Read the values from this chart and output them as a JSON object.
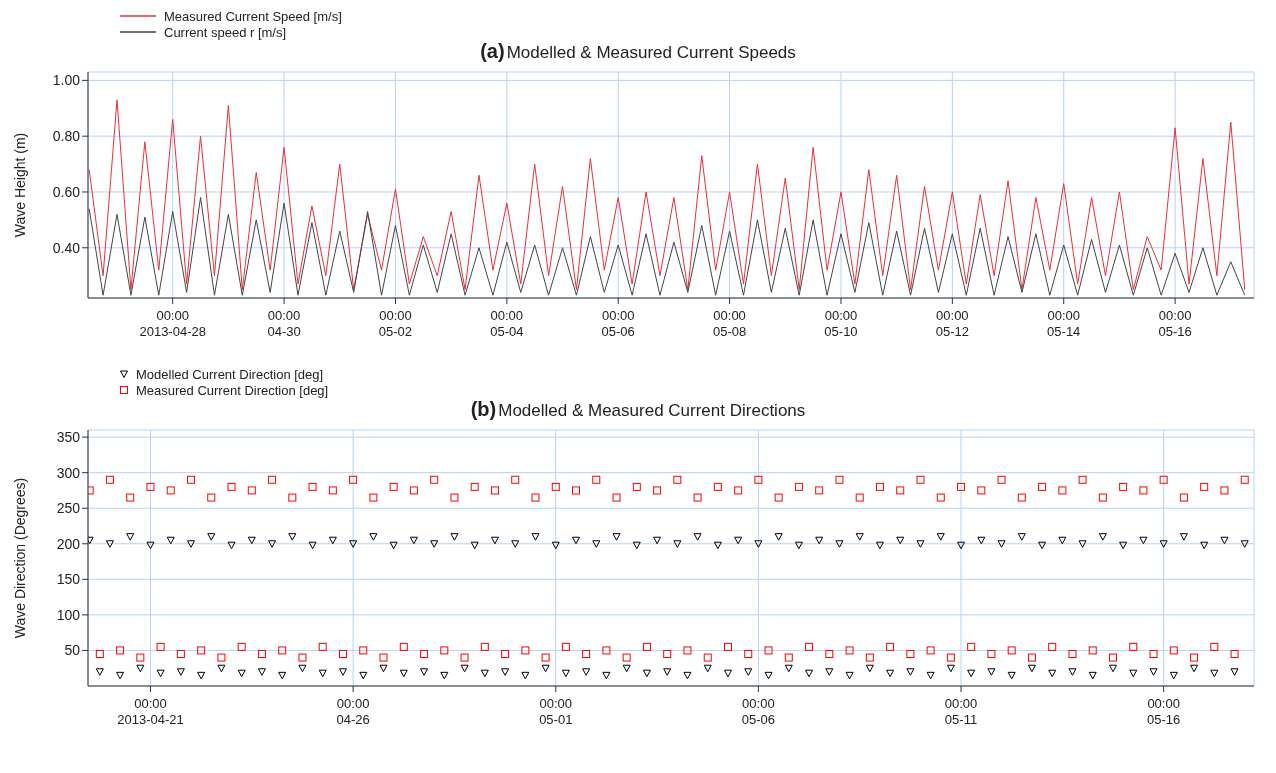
{
  "chart_data": [
    {
      "type": "line",
      "title": "Modelled & Measured Current Speeds",
      "annotations": [
        "(a)"
      ],
      "ylabel": "Wave Height (m)",
      "legend": "top left",
      "grid": true,
      "xlim": [
        "2013-04-26T11:30",
        "2013-05-17T10:00"
      ],
      "xticks": [
        {
          "value": "2013-04-28",
          "label": "00:00\n2013-04-28"
        },
        {
          "value": "2013-04-30",
          "label": "00:00\n04-30"
        },
        {
          "value": "2013-05-02",
          "label": "00:00\n05-02"
        },
        {
          "value": "2013-05-04",
          "label": "00:00\n05-04"
        },
        {
          "value": "2013-05-06",
          "label": "00:00\n05-06"
        },
        {
          "value": "2013-05-08",
          "label": "00:00\n05-08"
        },
        {
          "value": "2013-05-10",
          "label": "00:00\n05-10"
        },
        {
          "value": "2013-05-12",
          "label": "00:00\n05-12"
        },
        {
          "value": "2013-05-14",
          "label": "00:00\n05-14"
        },
        {
          "value": "2013-05-16",
          "label": "00:00\n05-16"
        }
      ],
      "ylim": [
        0.22,
        1.03
      ],
      "yticks": [
        {
          "value": 0.4,
          "label": "0.40"
        },
        {
          "value": 0.6,
          "label": "0.60"
        },
        {
          "value": 0.8,
          "label": "0.80"
        },
        {
          "value": 1.0,
          "label": "1.00"
        }
      ],
      "x": [
        "2013-04-26T12:00",
        "2013-04-26T18:00",
        "2013-04-27T00:00",
        "2013-04-27T06:00",
        "2013-04-27T12:00",
        "2013-04-27T18:00",
        "2013-04-28T00:00",
        "2013-04-28T06:00",
        "2013-04-28T12:00",
        "2013-04-28T18:00",
        "2013-04-29T00:00",
        "2013-04-29T06:00",
        "2013-04-29T12:00",
        "2013-04-29T18:00",
        "2013-04-30T00:00",
        "2013-04-30T06:00",
        "2013-04-30T12:00",
        "2013-04-30T18:00",
        "2013-05-01T00:00",
        "2013-05-01T06:00",
        "2013-05-01T12:00",
        "2013-05-01T18:00",
        "2013-05-02T00:00",
        "2013-05-02T06:00",
        "2013-05-02T12:00",
        "2013-05-02T18:00",
        "2013-05-03T00:00",
        "2013-05-03T06:00",
        "2013-05-03T12:00",
        "2013-05-03T18:00",
        "2013-05-04T00:00",
        "2013-05-04T06:00",
        "2013-05-04T12:00",
        "2013-05-04T18:00",
        "2013-05-05T00:00",
        "2013-05-05T06:00",
        "2013-05-05T12:00",
        "2013-05-05T18:00",
        "2013-05-06T00:00",
        "2013-05-06T06:00",
        "2013-05-06T12:00",
        "2013-05-06T18:00",
        "2013-05-07T00:00",
        "2013-05-07T06:00",
        "2013-05-07T12:00",
        "2013-05-07T18:00",
        "2013-05-08T00:00",
        "2013-05-08T06:00",
        "2013-05-08T12:00",
        "2013-05-08T18:00",
        "2013-05-09T00:00",
        "2013-05-09T06:00",
        "2013-05-09T12:00",
        "2013-05-09T18:00",
        "2013-05-10T00:00",
        "2013-05-10T06:00",
        "2013-05-10T12:00",
        "2013-05-10T18:00",
        "2013-05-11T00:00",
        "2013-05-11T06:00",
        "2013-05-11T12:00",
        "2013-05-11T18:00",
        "2013-05-12T00:00",
        "2013-05-12T06:00",
        "2013-05-12T12:00",
        "2013-05-12T18:00",
        "2013-05-13T00:00",
        "2013-05-13T06:00",
        "2013-05-13T12:00",
        "2013-05-13T18:00",
        "2013-05-14T00:00",
        "2013-05-14T06:00",
        "2013-05-14T12:00",
        "2013-05-14T18:00",
        "2013-05-15T00:00",
        "2013-05-15T06:00",
        "2013-05-15T12:00",
        "2013-05-15T18:00",
        "2013-05-16T00:00",
        "2013-05-16T06:00",
        "2013-05-16T12:00",
        "2013-05-16T18:00",
        "2013-05-17T00:00",
        "2013-05-17T06:00"
      ],
      "series": [
        {
          "name": "Measured Current Speed [m/s]",
          "color": "#e8303a",
          "values": [
            0.68,
            0.3,
            0.93,
            0.25,
            0.78,
            0.32,
            0.86,
            0.27,
            0.8,
            0.3,
            0.91,
            0.25,
            0.67,
            0.32,
            0.76,
            0.27,
            0.55,
            0.3,
            0.7,
            0.25,
            0.52,
            0.32,
            0.61,
            0.27,
            0.44,
            0.3,
            0.53,
            0.25,
            0.66,
            0.32,
            0.56,
            0.27,
            0.7,
            0.3,
            0.62,
            0.25,
            0.72,
            0.32,
            0.58,
            0.27,
            0.6,
            0.3,
            0.58,
            0.25,
            0.73,
            0.32,
            0.6,
            0.27,
            0.7,
            0.3,
            0.65,
            0.25,
            0.76,
            0.32,
            0.6,
            0.27,
            0.68,
            0.3,
            0.66,
            0.25,
            0.62,
            0.32,
            0.6,
            0.27,
            0.59,
            0.3,
            0.64,
            0.25,
            0.58,
            0.32,
            0.63,
            0.27,
            0.58,
            0.3,
            0.6,
            0.25,
            0.44,
            0.32,
            0.83,
            0.27,
            0.72,
            0.3,
            0.85,
            0.25
          ]
        },
        {
          "name": "Current speed r [m/s]",
          "color": "#444444",
          "values": [
            0.54,
            0.23,
            0.52,
            0.23,
            0.51,
            0.23,
            0.53,
            0.24,
            0.58,
            0.23,
            0.52,
            0.23,
            0.5,
            0.24,
            0.56,
            0.23,
            0.49,
            0.23,
            0.46,
            0.24,
            0.53,
            0.23,
            0.48,
            0.23,
            0.41,
            0.24,
            0.45,
            0.23,
            0.4,
            0.23,
            0.42,
            0.24,
            0.41,
            0.23,
            0.4,
            0.23,
            0.44,
            0.24,
            0.41,
            0.23,
            0.45,
            0.23,
            0.42,
            0.24,
            0.48,
            0.23,
            0.46,
            0.23,
            0.5,
            0.24,
            0.47,
            0.23,
            0.5,
            0.23,
            0.45,
            0.24,
            0.49,
            0.23,
            0.46,
            0.23,
            0.47,
            0.24,
            0.45,
            0.23,
            0.47,
            0.23,
            0.44,
            0.24,
            0.45,
            0.23,
            0.41,
            0.23,
            0.43,
            0.24,
            0.41,
            0.23,
            0.4,
            0.23,
            0.38,
            0.24,
            0.4,
            0.23,
            0.35,
            0.23
          ]
        }
      ]
    },
    {
      "type": "scatter",
      "title": "Modelled & Measured Current Directions",
      "annotations": [
        "(b)"
      ],
      "ylabel": "Wave Direction (Degrees)",
      "legend": "top left",
      "grid": true,
      "xlim": [
        "2013-04-19T11:00",
        "2013-05-18T05:30"
      ],
      "xticks": [
        {
          "value": "2013-04-21",
          "label": "00:00\n2013-04-21"
        },
        {
          "value": "2013-04-26",
          "label": "00:00\n04-26"
        },
        {
          "value": "2013-05-01",
          "label": "00:00\n05-01"
        },
        {
          "value": "2013-05-06",
          "label": "00:00\n05-06"
        },
        {
          "value": "2013-05-11",
          "label": "00:00\n05-11"
        },
        {
          "value": "2013-05-16",
          "label": "00:00\n05-16"
        }
      ],
      "ylim": [
        0,
        360
      ],
      "yticks": [
        50,
        100,
        150,
        200,
        250,
        300,
        350
      ],
      "x": [
        "2013-04-19T12:00",
        "2013-04-19T18:00",
        "2013-04-20T00:00",
        "2013-04-20T06:00",
        "2013-04-20T12:00",
        "2013-04-20T18:00",
        "2013-04-21T00:00",
        "2013-04-21T06:00",
        "2013-04-21T12:00",
        "2013-04-21T18:00",
        "2013-04-22T00:00",
        "2013-04-22T06:00",
        "2013-04-22T12:00",
        "2013-04-22T18:00",
        "2013-04-23T00:00",
        "2013-04-23T06:00",
        "2013-04-23T12:00",
        "2013-04-23T18:00",
        "2013-04-24T00:00",
        "2013-04-24T06:00",
        "2013-04-24T12:00",
        "2013-04-24T18:00",
        "2013-04-25T00:00",
        "2013-04-25T06:00",
        "2013-04-25T12:00",
        "2013-04-25T18:00",
        "2013-04-26T00:00",
        "2013-04-26T06:00",
        "2013-04-26T12:00",
        "2013-04-26T18:00",
        "2013-04-27T00:00",
        "2013-04-27T06:00",
        "2013-04-27T12:00",
        "2013-04-27T18:00",
        "2013-04-28T00:00",
        "2013-04-28T06:00",
        "2013-04-28T12:00",
        "2013-04-28T18:00",
        "2013-04-29T00:00",
        "2013-04-29T06:00",
        "2013-04-29T12:00",
        "2013-04-29T18:00",
        "2013-04-30T00:00",
        "2013-04-30T06:00",
        "2013-04-30T12:00",
        "2013-04-30T18:00",
        "2013-05-01T00:00",
        "2013-05-01T06:00",
        "2013-05-01T12:00",
        "2013-05-01T18:00",
        "2013-05-02T00:00",
        "2013-05-02T06:00",
        "2013-05-02T12:00",
        "2013-05-02T18:00",
        "2013-05-03T00:00",
        "2013-05-03T06:00",
        "2013-05-03T12:00",
        "2013-05-03T18:00",
        "2013-05-04T00:00",
        "2013-05-04T06:00",
        "2013-05-04T12:00",
        "2013-05-04T18:00",
        "2013-05-05T00:00",
        "2013-05-05T06:00",
        "2013-05-05T12:00",
        "2013-05-05T18:00",
        "2013-05-06T00:00",
        "2013-05-06T06:00",
        "2013-05-06T12:00",
        "2013-05-06T18:00",
        "2013-05-07T00:00",
        "2013-05-07T06:00",
        "2013-05-07T12:00",
        "2013-05-07T18:00",
        "2013-05-08T00:00",
        "2013-05-08T06:00",
        "2013-05-08T12:00",
        "2013-05-08T18:00",
        "2013-05-09T00:00",
        "2013-05-09T06:00",
        "2013-05-09T12:00",
        "2013-05-09T18:00",
        "2013-05-10T00:00",
        "2013-05-10T06:00",
        "2013-05-10T12:00",
        "2013-05-10T18:00",
        "2013-05-11T00:00",
        "2013-05-11T06:00",
        "2013-05-11T12:00",
        "2013-05-11T18:00",
        "2013-05-12T00:00",
        "2013-05-12T06:00",
        "2013-05-12T12:00",
        "2013-05-12T18:00",
        "2013-05-13T00:00",
        "2013-05-13T06:00",
        "2013-05-13T12:00",
        "2013-05-13T18:00",
        "2013-05-14T00:00",
        "2013-05-14T06:00",
        "2013-05-14T12:00",
        "2013-05-14T18:00",
        "2013-05-15T00:00",
        "2013-05-15T06:00",
        "2013-05-15T12:00",
        "2013-05-15T18:00",
        "2013-05-16T00:00",
        "2013-05-16T06:00",
        "2013-05-16T12:00",
        "2013-05-16T18:00",
        "2013-05-17T00:00",
        "2013-05-17T06:00",
        "2013-05-17T12:00",
        "2013-05-17T18:00",
        "2013-05-18T00:00"
      ],
      "series": [
        {
          "name": "Modelled Current Direction [deg]",
          "color": "#000000",
          "marker": "triangle",
          "values": [
            205,
            20,
            200,
            15,
            210,
            25,
            198,
            18,
            205,
            20,
            200,
            15,
            210,
            25,
            198,
            18,
            205,
            20,
            200,
            15,
            210,
            25,
            198,
            18,
            205,
            20,
            200,
            15,
            210,
            25,
            198,
            18,
            205,
            20,
            200,
            15,
            210,
            25,
            198,
            18,
            205,
            20,
            200,
            15,
            210,
            25,
            198,
            18,
            205,
            20,
            200,
            15,
            210,
            25,
            198,
            18,
            205,
            20,
            200,
            15,
            210,
            25,
            198,
            18,
            205,
            20,
            200,
            15,
            210,
            25,
            198,
            18,
            205,
            20,
            200,
            15,
            210,
            25,
            198,
            18,
            205,
            20,
            200,
            15,
            210,
            25,
            198,
            18,
            205,
            20,
            200,
            15,
            210,
            25,
            198,
            18,
            205,
            20,
            200,
            15,
            210,
            25,
            198,
            18,
            205,
            20,
            200,
            15,
            210,
            25,
            198,
            18,
            205,
            20,
            200
          ]
        },
        {
          "name": "Measured Current Direction [deg]",
          "color": "#ff0000",
          "marker": "square",
          "values": [
            275,
            45,
            290,
            50,
            265,
            40,
            280,
            55,
            275,
            45,
            290,
            50,
            265,
            40,
            280,
            55,
            275,
            45,
            290,
            50,
            265,
            40,
            280,
            55,
            275,
            45,
            290,
            50,
            265,
            40,
            280,
            55,
            275,
            45,
            290,
            50,
            265,
            40,
            280,
            55,
            275,
            45,
            290,
            50,
            265,
            40,
            280,
            55,
            275,
            45,
            290,
            50,
            265,
            40,
            280,
            55,
            275,
            45,
            290,
            50,
            265,
            40,
            280,
            55,
            275,
            45,
            290,
            50,
            265,
            40,
            280,
            55,
            275,
            45,
            290,
            50,
            265,
            40,
            280,
            55,
            275,
            45,
            290,
            50,
            265,
            40,
            280,
            55,
            275,
            45,
            290,
            50,
            265,
            40,
            280,
            55,
            275,
            45,
            290,
            50,
            265,
            40,
            280,
            55,
            275,
            45,
            290,
            50,
            265,
            40,
            280,
            55,
            275,
            45,
            290
          ]
        }
      ]
    }
  ]
}
